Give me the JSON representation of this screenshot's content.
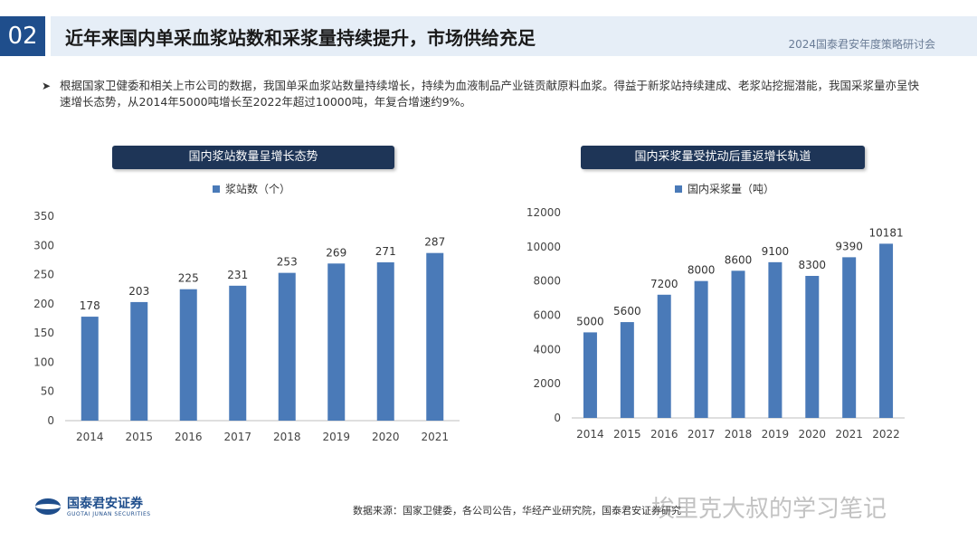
{
  "header": {
    "number": "02",
    "title": "近年来国内单采血浆站数和采浆量持续提升，市场供给充足",
    "conference": "2024国泰君安年度策略研讨会"
  },
  "paragraph": {
    "bullet": "➤",
    "text": "根据国家卫健委和相关上市公司的数据，我国单采血浆站数量持续增长，持续为血液制品产业链贡献原料血浆。得益于新浆站持续建成、老浆站挖掘潜能，我国采浆量亦呈快速增长态势，从2014年5000吨增长至2022年超过10000吨，年复合增速约9%。"
  },
  "chart_data": [
    {
      "type": "bar",
      "title": "国内浆站数量呈增长态势",
      "legend": "浆站数（个）",
      "categories": [
        "2014",
        "2015",
        "2016",
        "2017",
        "2018",
        "2019",
        "2020",
        "2021"
      ],
      "values": [
        178,
        203,
        225,
        231,
        253,
        269,
        271,
        287
      ],
      "ylim": [
        0,
        350
      ],
      "yticks": [
        0,
        50,
        100,
        150,
        200,
        250,
        300,
        350
      ],
      "color": "#4a7ab8"
    },
    {
      "type": "bar",
      "title": "国内采浆量受扰动后重返增长轨道",
      "legend": "国内采浆量（吨）",
      "categories": [
        "2014",
        "2015",
        "2016",
        "2017",
        "2018",
        "2019",
        "2020",
        "2021",
        "2022"
      ],
      "values": [
        5000,
        5600,
        7200,
        8000,
        8600,
        9100,
        8300,
        9390,
        10181
      ],
      "ylim": [
        0,
        12000
      ],
      "yticks": [
        0,
        2000,
        4000,
        6000,
        8000,
        10000,
        12000
      ],
      "color": "#4a7ab8"
    }
  ],
  "footer": {
    "logo_cn": "国泰君安证券",
    "logo_en": "GUOTAI JUNAN SECURITIES",
    "source": "数据来源：国家卫健委，各公司公告，华经产业研究院，国泰君安证券研究",
    "watermark": "埃里克大叔的学习笔记"
  }
}
